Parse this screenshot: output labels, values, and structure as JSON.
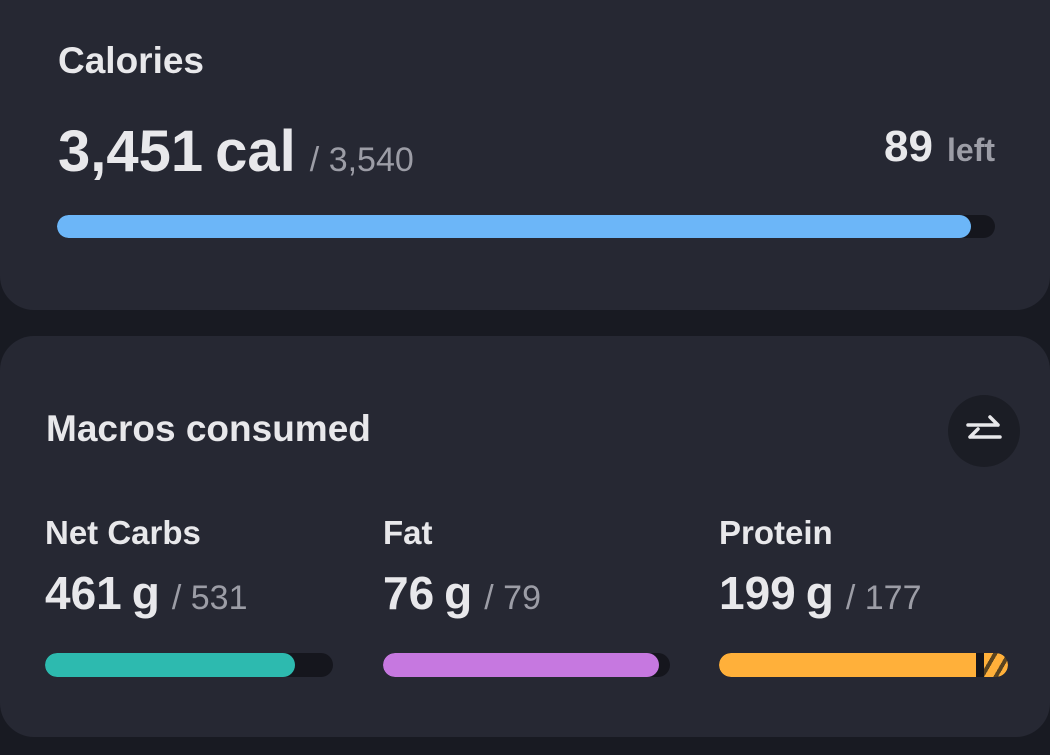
{
  "calories": {
    "title": "Calories",
    "consumed": {
      "value": 3451,
      "label": "3,451"
    },
    "unit": "cal",
    "goal": {
      "value": 3540,
      "label": "/ 3,540"
    },
    "remaining": 89,
    "remaining_label": "left",
    "color": "#6cb6f8"
  },
  "macros": {
    "title": "Macros consumed",
    "items": [
      {
        "name": "Net Carbs",
        "consumed": 461,
        "unit": "g",
        "goal": {
          "value": 531,
          "label": "/ 531"
        },
        "color": "#2dbaaf"
      },
      {
        "name": "Fat",
        "consumed": 76,
        "unit": "g",
        "goal": {
          "value": 79,
          "label": "/ 79"
        },
        "color": "#c678e0"
      },
      {
        "name": "Protein",
        "consumed": 199,
        "unit": "g",
        "goal": {
          "value": 177,
          "label": "/ 177"
        },
        "color": "#ffb03a"
      }
    ]
  }
}
